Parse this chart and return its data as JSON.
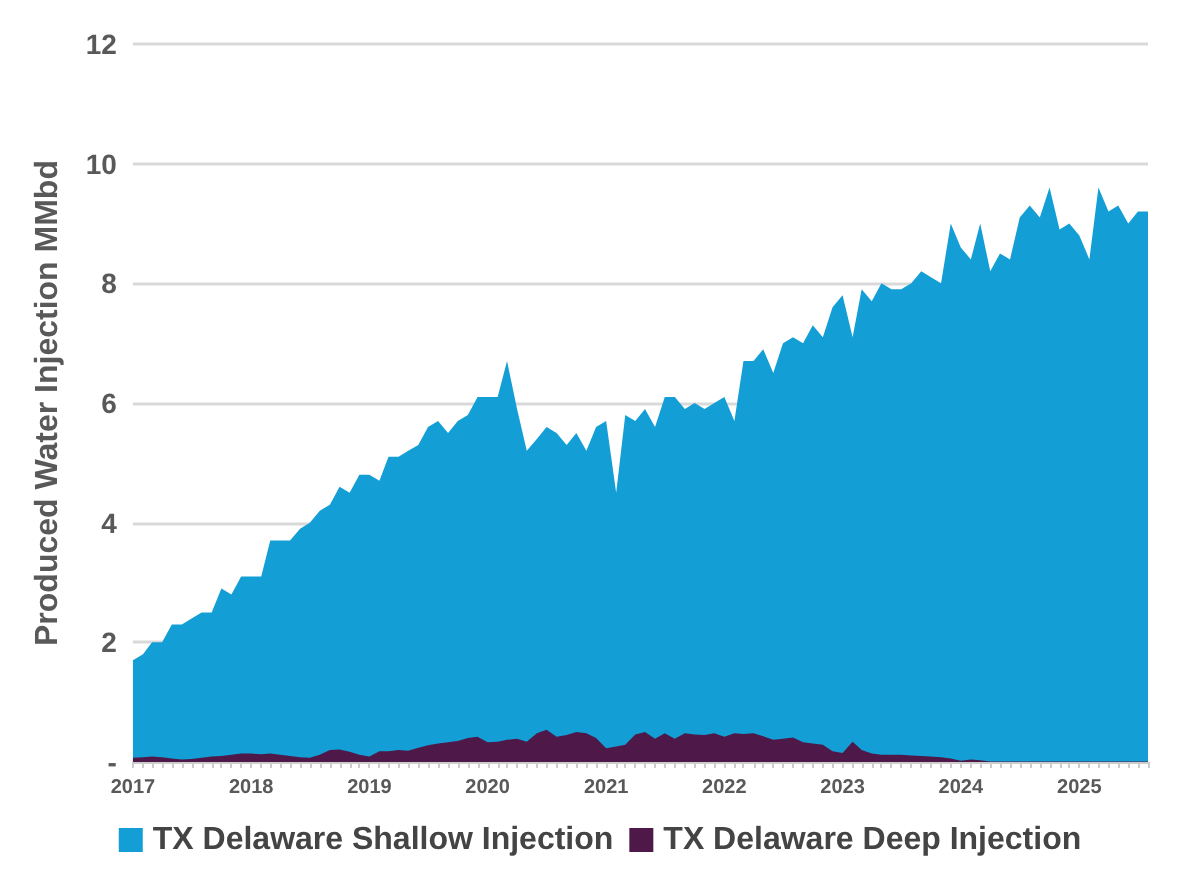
{
  "chart_data": {
    "type": "area",
    "ylabel": "Produced Water Injection MMbd",
    "x": [
      "2017-01",
      "2017-02",
      "2017-03",
      "2017-04",
      "2017-05",
      "2017-06",
      "2017-07",
      "2017-08",
      "2017-09",
      "2017-10",
      "2017-11",
      "2017-12",
      "2018-01",
      "2018-02",
      "2018-03",
      "2018-04",
      "2018-05",
      "2018-06",
      "2018-07",
      "2018-08",
      "2018-09",
      "2018-10",
      "2018-11",
      "2018-12",
      "2019-01",
      "2019-02",
      "2019-03",
      "2019-04",
      "2019-05",
      "2019-06",
      "2019-07",
      "2019-08",
      "2019-09",
      "2019-10",
      "2019-11",
      "2019-12",
      "2020-01",
      "2020-02",
      "2020-03",
      "2020-04",
      "2020-05",
      "2020-06",
      "2020-07",
      "2020-08",
      "2020-09",
      "2020-10",
      "2020-11",
      "2020-12",
      "2021-01",
      "2021-02",
      "2021-03",
      "2021-04",
      "2021-05",
      "2021-06",
      "2021-07",
      "2021-08",
      "2021-09",
      "2021-10",
      "2021-11",
      "2021-12",
      "2022-01",
      "2022-02",
      "2022-03",
      "2022-04",
      "2022-05",
      "2022-06",
      "2022-07",
      "2022-08",
      "2022-09",
      "2022-10",
      "2022-11",
      "2022-12",
      "2023-01",
      "2023-02",
      "2023-03",
      "2023-04",
      "2023-05",
      "2023-06",
      "2023-07",
      "2023-08",
      "2023-09",
      "2023-10",
      "2023-11",
      "2023-12",
      "2024-01",
      "2024-02",
      "2024-03",
      "2024-04",
      "2024-05",
      "2024-06",
      "2024-07",
      "2024-08",
      "2024-09",
      "2024-10",
      "2024-11",
      "2024-12",
      "2025-01",
      "2025-02",
      "2025-03",
      "2025-04",
      "2025-05",
      "2025-06",
      "2025-07",
      "2025-08"
    ],
    "series": [
      {
        "name": "TX Delaware Shallow Injection",
        "color": "#139fd6",
        "values": [
          1.7,
          1.8,
          2.0,
          2.0,
          2.3,
          2.3,
          2.4,
          2.5,
          2.5,
          2.9,
          2.8,
          3.1,
          3.1,
          3.1,
          3.7,
          3.7,
          3.7,
          3.9,
          4.0,
          4.2,
          4.3,
          4.6,
          4.5,
          4.8,
          4.8,
          4.7,
          5.1,
          5.1,
          5.2,
          5.3,
          5.6,
          5.7,
          5.5,
          5.7,
          5.8,
          6.1,
          6.1,
          6.1,
          6.7,
          5.9,
          5.2,
          5.4,
          5.6,
          5.5,
          5.3,
          5.5,
          5.2,
          5.6,
          5.7,
          4.5,
          5.8,
          5.7,
          5.9,
          5.6,
          6.1,
          6.1,
          5.9,
          6.0,
          5.9,
          6.0,
          6.1,
          5.7,
          6.7,
          6.7,
          6.9,
          6.5,
          7.0,
          7.1,
          7.0,
          7.3,
          7.1,
          7.6,
          7.8,
          7.1,
          7.9,
          7.7,
          8.0,
          7.9,
          7.9,
          8.0,
          8.2,
          8.1,
          8.0,
          9.0,
          8.6,
          8.4,
          9.0,
          8.2,
          8.5,
          8.4,
          9.1,
          9.3,
          9.1,
          9.6,
          8.9,
          9.0,
          8.8,
          8.4,
          9.6,
          9.2,
          9.3,
          9.0,
          9.2,
          9.2
        ]
      },
      {
        "name": "TX Delaware Deep Injection",
        "color": "#4e1848",
        "values": [
          0.07,
          0.08,
          0.09,
          0.08,
          0.06,
          0.04,
          0.05,
          0.07,
          0.09,
          0.1,
          0.12,
          0.14,
          0.14,
          0.13,
          0.14,
          0.12,
          0.1,
          0.08,
          0.07,
          0.12,
          0.2,
          0.21,
          0.17,
          0.12,
          0.09,
          0.18,
          0.18,
          0.2,
          0.19,
          0.24,
          0.28,
          0.31,
          0.33,
          0.35,
          0.4,
          0.42,
          0.33,
          0.34,
          0.37,
          0.39,
          0.34,
          0.48,
          0.54,
          0.42,
          0.45,
          0.5,
          0.48,
          0.4,
          0.23,
          0.26,
          0.29,
          0.46,
          0.5,
          0.39,
          0.48,
          0.39,
          0.48,
          0.46,
          0.45,
          0.48,
          0.42,
          0.48,
          0.47,
          0.48,
          0.43,
          0.37,
          0.39,
          0.41,
          0.33,
          0.31,
          0.29,
          0.18,
          0.15,
          0.34,
          0.2,
          0.14,
          0.12,
          0.12,
          0.12,
          0.11,
          0.1,
          0.09,
          0.08,
          0.06,
          0.02,
          0.04,
          0.03,
          0.01,
          0.01,
          0.01,
          0.01,
          0.01,
          0.01,
          0.01,
          0.01,
          0.01,
          0.01,
          0.01,
          0.01,
          0.01,
          0.01,
          0.01,
          0.01,
          0.01
        ]
      }
    ],
    "xlim": [
      "2017-01",
      "2025-08"
    ],
    "xticks": [
      "2017",
      "2018",
      "2019",
      "2020",
      "2021",
      "2022",
      "2023",
      "2024",
      "2025"
    ],
    "ylim": [
      0,
      12
    ],
    "yticks": [
      {
        "value": 0,
        "label": "-"
      },
      2,
      4,
      6,
      8,
      10,
      12
    ],
    "grid": "y",
    "legend": "bottom"
  }
}
